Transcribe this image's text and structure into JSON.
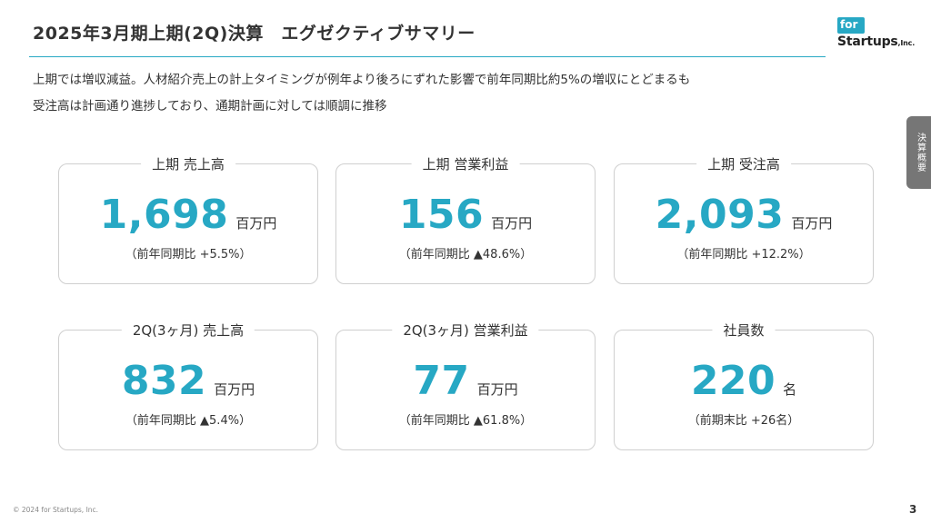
{
  "header": {
    "title": "2025年3月期上期(2Q)決算　エグゼクティブサマリー"
  },
  "logo": {
    "top_text": "for",
    "name": "Startups",
    "suffix": ",Inc."
  },
  "side_tab": {
    "label": "決算概要"
  },
  "summary": {
    "line1": "上期では増収減益。人材紹介売上の計上タイミングが例年より後ろにずれた影響で前年同期比約5%の増収にとどまるも",
    "line2": "受注高は計画通り進捗しており、通期計画に対しては順調に推移"
  },
  "cards": [
    {
      "label": "上期 売上高",
      "value": "1,698",
      "unit": "百万円",
      "note": "（前年同期比 +5.5%）"
    },
    {
      "label": "上期 営業利益",
      "value": "156",
      "unit": "百万円",
      "note": "（前年同期比 ▲48.6%）"
    },
    {
      "label": "上期 受注高",
      "value": "2,093",
      "unit": "百万円",
      "note": "（前年同期比 +12.2%）"
    },
    {
      "label": "2Q(3ヶ月) 売上高",
      "value": "832",
      "unit": "百万円",
      "note": "（前年同期比 ▲5.4%）"
    },
    {
      "label": "2Q(3ヶ月) 営業利益",
      "value": "77",
      "unit": "百万円",
      "note": "（前年同期比 ▲61.8%）"
    },
    {
      "label": "社員数",
      "value": "220",
      "unit": "名",
      "note": "（前期末比 +26名）"
    }
  ],
  "colors": {
    "accent": "#27a8c4",
    "tab": "#767676"
  },
  "footer": {
    "copyright": "© 2024 for Startups, Inc.",
    "page": "3"
  }
}
